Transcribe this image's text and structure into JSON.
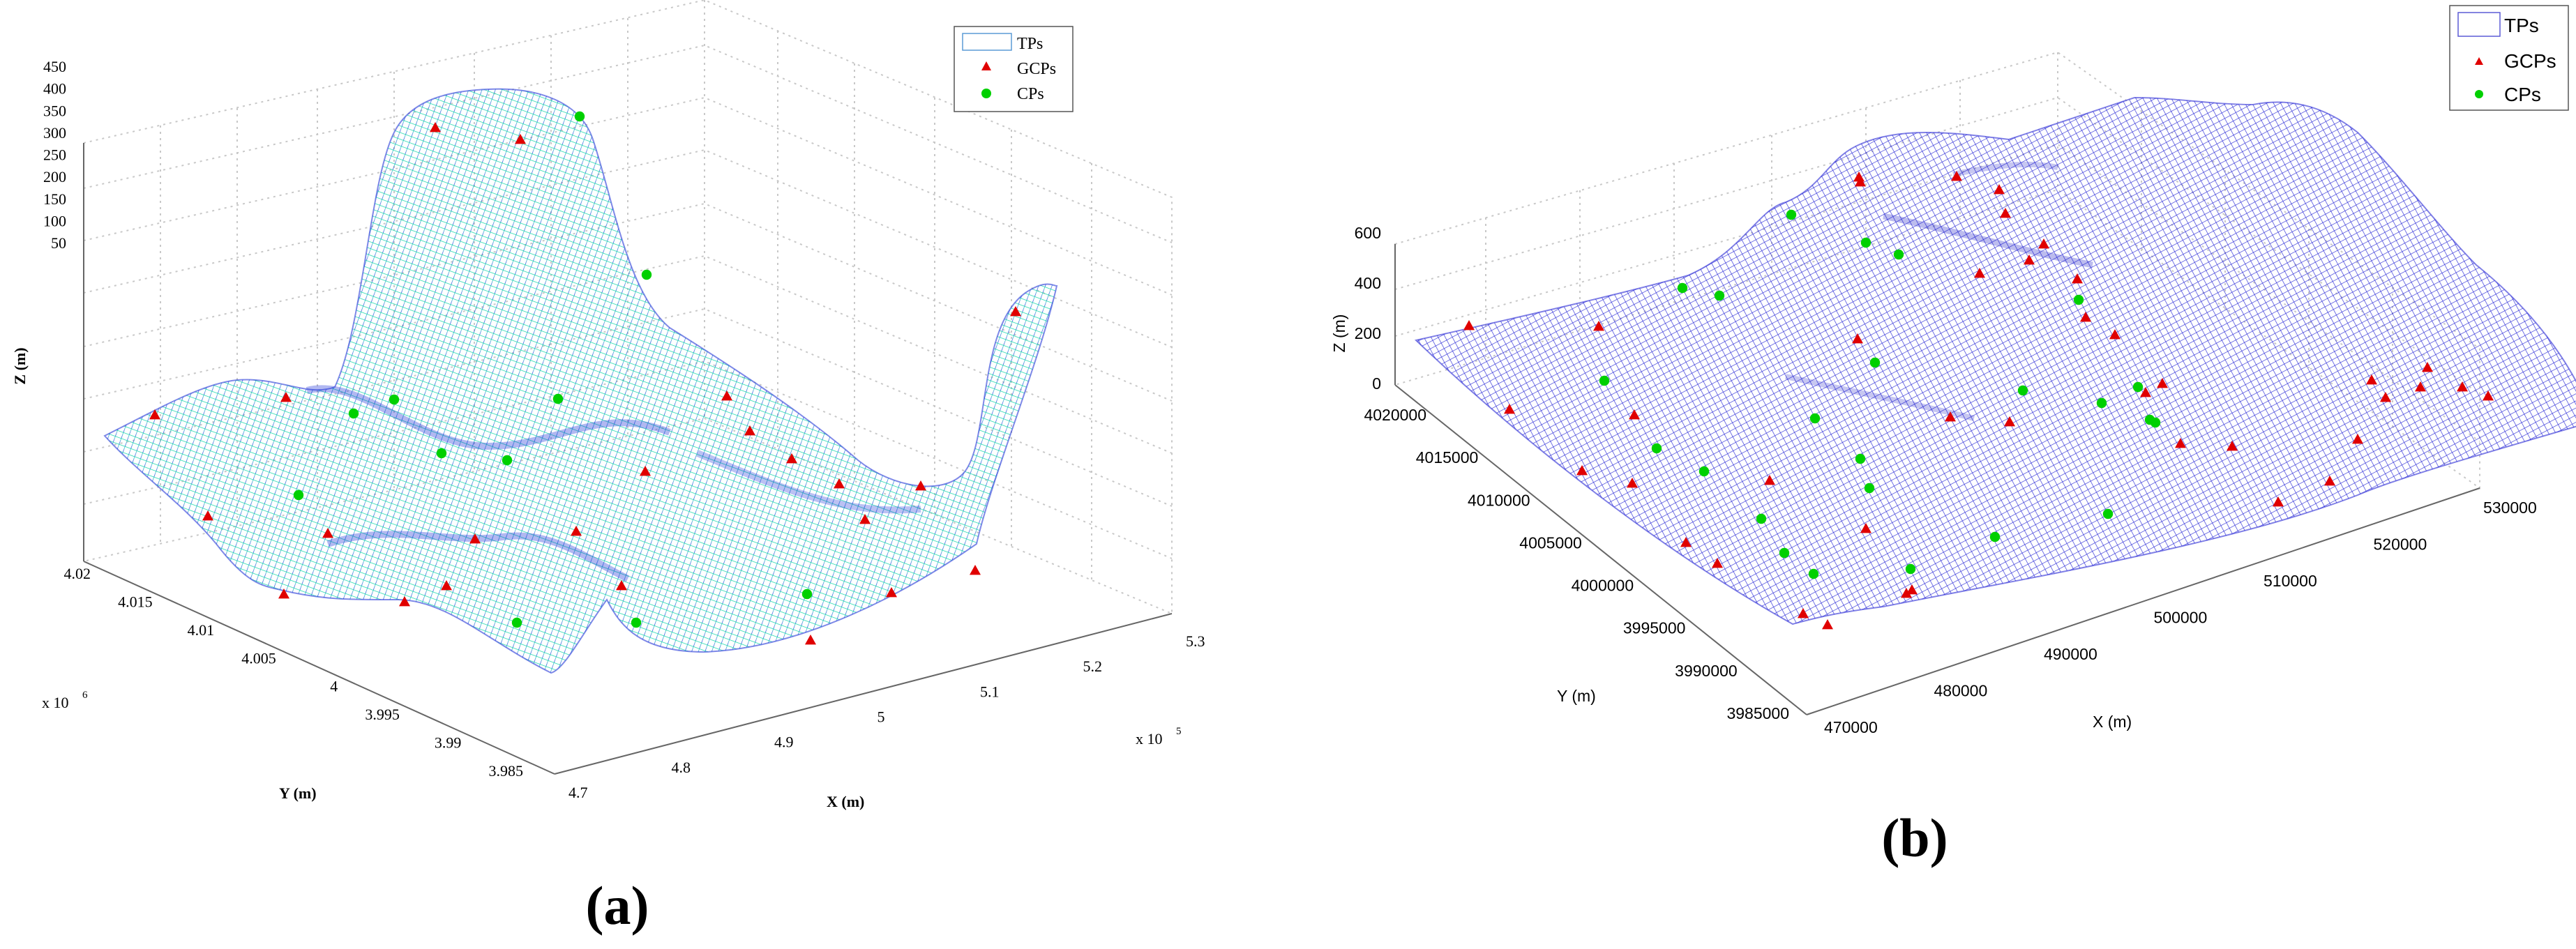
{
  "chart_data": [
    {
      "type": "surface3d",
      "panel_label": "(a)",
      "xlabel": "X (m)",
      "ylabel": "Y (m)",
      "zlabel": "Z (m)",
      "x_multiplier": "x 10",
      "x_multiplier_exp": "5",
      "y_multiplier": "x 10",
      "y_multiplier_exp": "6",
      "x_ticks": [
        "4.7",
        "4.8",
        "4.9",
        "5",
        "5.1",
        "5.2",
        "5.3"
      ],
      "y_ticks": [
        "3.985",
        "3.99",
        "3.995",
        "4",
        "4.005",
        "4.01",
        "4.015",
        "4.02"
      ],
      "z_ticks": [
        "50",
        "100",
        "150",
        "200",
        "250",
        "300",
        "350",
        "400",
        "450"
      ],
      "xlim": [
        4.7,
        5.3
      ],
      "ylim": [
        3.985,
        4.02
      ],
      "zlim": [
        50,
        450
      ],
      "legend": {
        "entries": [
          "TPs",
          "GCPs",
          "CPs"
        ],
        "placement": "top-right"
      },
      "series": [
        {
          "name": "TPs",
          "kind": "surface mesh",
          "color": "#1f3fd8"
        },
        {
          "name": "GCPs",
          "kind": "red triangle markers",
          "color": "#e00000"
        },
        {
          "name": "CPs",
          "kind": "green circle markers",
          "color": "#00d000"
        }
      ]
    },
    {
      "type": "surface3d",
      "panel_label": "(b)",
      "xlabel": "X (m)",
      "ylabel": "Y (m)",
      "zlabel": "Z (m)",
      "x_ticks": [
        "470000",
        "480000",
        "490000",
        "500000",
        "510000",
        "520000",
        "530000"
      ],
      "y_ticks": [
        "3985000",
        "3990000",
        "3995000",
        "4000000",
        "4005000",
        "4010000",
        "4015000",
        "4020000"
      ],
      "z_ticks": [
        "0",
        "200",
        "400",
        "600"
      ],
      "xlim": [
        470000,
        530000
      ],
      "ylim": [
        3985000,
        4020000
      ],
      "zlim": [
        0,
        600
      ],
      "legend": {
        "entries": [
          "TPs",
          "GCPs",
          "CPs"
        ],
        "placement": "top-right"
      },
      "series": [
        {
          "name": "TPs",
          "kind": "surface mesh",
          "color": "#2b2bd6"
        },
        {
          "name": "GCPs",
          "kind": "red triangle markers",
          "color": "#e00000"
        },
        {
          "name": "CPs",
          "kind": "green circle markers",
          "color": "#00d000"
        }
      ]
    }
  ]
}
